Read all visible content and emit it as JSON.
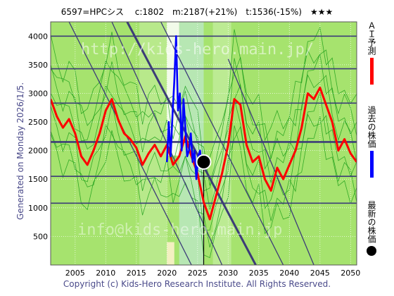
{
  "header": {
    "title": "6597=HPCシス　 c:1802　m:2187(+21%)　t:1536(-15%)　★★★"
  },
  "side_label": "Generated on Monday 2026/1/5.",
  "copyright": "Copyright (c) Kids-Hero Research Institute. All Rights Reserved.",
  "watermark": {
    "top": "http://kids-hero.main.jp/",
    "bottom": "info@kids-hero.main.jp"
  },
  "legend": {
    "ai": "ＡＩ予測",
    "past": "過去の株価",
    "latest": "最新の株価"
  },
  "colors": {
    "background": "#a6e36e",
    "ai": "#ff0000",
    "past": "#0000ff",
    "latest": "#000000",
    "trend": "#3c3c78",
    "ensemble": "#159b15"
  },
  "chart_data": {
    "type": "line",
    "xlim": [
      2001,
      2051
    ],
    "ylim": [
      0,
      4250
    ],
    "x_ticks": [
      2005,
      2010,
      2015,
      2020,
      2025,
      2030,
      2035,
      2040,
      2045,
      2050
    ],
    "y_ticks": [
      500,
      1000,
      1500,
      2000,
      2500,
      3000,
      3500,
      4000
    ],
    "grid": true,
    "horizontal_levels": [
      1080,
      1550,
      2150,
      2830,
      3430,
      4000
    ],
    "current_price": {
      "x": 2026.0,
      "y": 1800
    },
    "series": [
      {
        "name": "ＡＩ予測",
        "role": "ai",
        "x": [
          2001.0,
          2002.0,
          2003.0,
          2004.0,
          2005.0,
          2006.0,
          2007.0,
          2008.0,
          2009.0,
          2010.0,
          2011.0,
          2012.0,
          2013.0,
          2014.0,
          2015.0,
          2016.0,
          2017.0,
          2018.0,
          2019.0,
          2020.0,
          2021.0,
          2022.0,
          2023.0,
          2024.0,
          2025.0,
          2026.0,
          2027.0,
          2028.0,
          2029.0,
          2030.0,
          2031.0,
          2032.0,
          2033.0,
          2034.0,
          2035.0,
          2036.0,
          2037.0,
          2038.0,
          2039.0,
          2040.0,
          2041.0,
          2042.0,
          2043.0,
          2044.0,
          2045.0,
          2046.0,
          2047.0,
          2048.0,
          2049.0,
          2050.0,
          2051.0
        ],
        "values": [
          2900,
          2600,
          2400,
          2550,
          2300,
          1900,
          1750,
          2000,
          2300,
          2700,
          2900,
          2550,
          2300,
          2200,
          2050,
          1750,
          1950,
          2100,
          1900,
          2100,
          1750,
          1900,
          2250,
          1900,
          1600,
          1100,
          800,
          1200,
          1600,
          2100,
          2900,
          2800,
          2100,
          1800,
          1900,
          1500,
          1300,
          1700,
          1500,
          1750,
          2000,
          2400,
          3000,
          2900,
          3100,
          2800,
          2500,
          2000,
          2200,
          1950,
          1800
        ]
      },
      {
        "name": "過去の株価",
        "role": "past",
        "x": [
          2020.0,
          2020.3,
          2020.6,
          2020.9,
          2021.2,
          2021.5,
          2021.8,
          2022.1,
          2022.4,
          2022.7,
          2023.0,
          2023.3,
          2023.6,
          2023.9,
          2024.2,
          2024.5,
          2024.8,
          2025.1,
          2025.4,
          2025.7,
          2026.0
        ],
        "values": [
          1800,
          2500,
          1900,
          2600,
          3200,
          4000,
          2700,
          3000,
          2000,
          2900,
          2400,
          1900,
          2000,
          2300,
          1800,
          2000,
          1500,
          1900,
          2000,
          1700,
          1800
        ]
      }
    ]
  }
}
